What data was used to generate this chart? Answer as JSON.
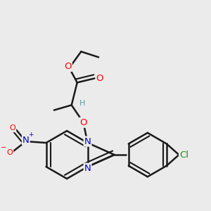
{
  "background_color": "#ebebeb",
  "bond_color": "#1a1a1a",
  "bond_width": 1.8,
  "atom_colors": {
    "O": "#ff0000",
    "N": "#0000cd",
    "Cl": "#228B22",
    "H": "#5a9ea0"
  },
  "figsize": [
    3.0,
    3.0
  ],
  "dpi": 100
}
